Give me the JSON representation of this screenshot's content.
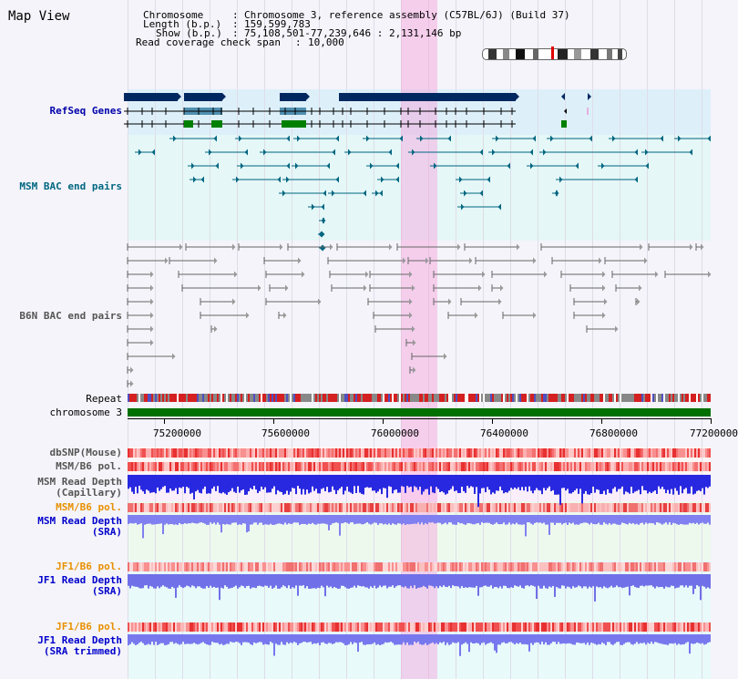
{
  "page_title": "Map View",
  "header": {
    "chromosome_label": "Chromosome",
    "chromosome_value": "Chromosome 3, reference assembly (C57BL/6J) (Build 37)",
    "length_label": "Length (b.p.)",
    "length_value": "159,599,783",
    "show_label": "Show (b.p.)",
    "show_value": "75,108,501-77,239,646 : 2,131,146 bp",
    "coverage_label": "Read coverage check span",
    "coverage_value": "10,000"
  },
  "tracks": {
    "refseq": "RefSeq Genes",
    "msm_bac": "MSM BAC end pairs",
    "b6n_bac": "B6N BAC end pairs",
    "repeat": "Repeat",
    "chromosome": "chromosome 3",
    "dbsnp": "dbSNP(Mouse)",
    "msm_b6_pol": "MSM/B6 pol.",
    "msm_read_depth_cap_1": "MSM Read Depth",
    "msm_read_depth_cap_2": "(Capillary)",
    "msm_b6_pol_2": "MSM/B6 pol.",
    "msm_read_depth_sra_1": "MSM Read Depth",
    "msm_read_depth_sra_2": "(SRA)",
    "jf1_b6_pol": "JF1/B6 pol.",
    "jf1_read_depth_1": "JF1 Read Depth",
    "jf1_read_depth_2": "(SRA)",
    "jf1_b6_pol_2": "JF1/B6 pol.",
    "jf1_trim_1": "JF1 Read Depth",
    "jf1_trim_2": "(SRA trimmed)"
  },
  "axis": {
    "ticks": [
      "75200000",
      "75600000",
      "76000000",
      "76400000",
      "76800000",
      "77200000"
    ]
  },
  "colors": {
    "refseq_label": "#0000aa",
    "msm_label": "#006680",
    "b6n_label": "#555555",
    "pol_orange": "#e89000",
    "depth_blue": "#0000cc",
    "highlight": "#f7a0dc"
  }
}
